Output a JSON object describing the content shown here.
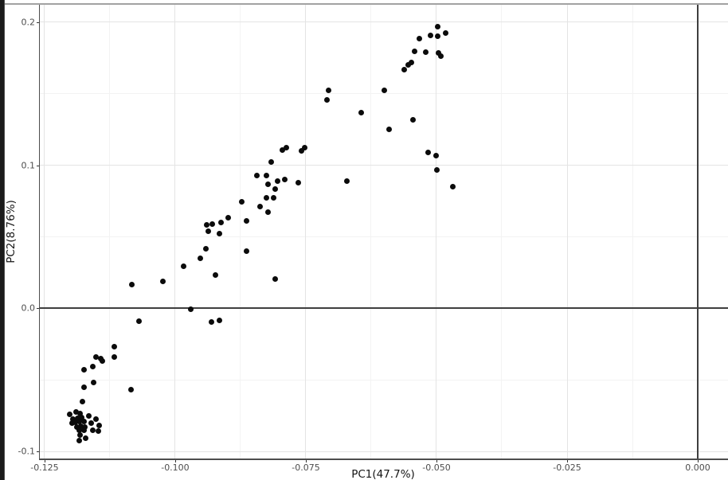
{
  "window": {
    "left_strip_color": "#1b1b1b",
    "top_divider_color": "#a2a2a2"
  },
  "chart_data": {
    "type": "scatter",
    "title": "",
    "xlabel": "PC1(47.7%)",
    "ylabel": "PC2(8.76%)",
    "legend": "none",
    "grid": "major+minor",
    "point_color": "#0b0b0b",
    "reference_line_color": "#3f3f3f",
    "xlim": [
      -0.12606,
      0.00579
    ],
    "ylim": [
      -0.10556,
      0.21222
    ],
    "x_ticks": {
      "values": [
        -0.125,
        -0.1,
        -0.075,
        -0.05,
        -0.025,
        0
      ],
      "labels": [
        "-0.125",
        "-0.100",
        "-0.075",
        "-0.050",
        "-0.025",
        "0.000"
      ]
    },
    "y_ticks": {
      "values": [
        -0.1,
        0,
        0.1,
        0.2
      ],
      "labels": [
        "-0.1",
        "0.0",
        "0.1",
        "0.2"
      ]
    },
    "x_minor_ticks": [
      -0.1125,
      -0.0875,
      -0.0625,
      -0.0375,
      -0.0125
    ],
    "y_minor_ticks": [
      -0.05,
      0.05,
      0.15
    ],
    "reference_lines": {
      "hline_y": 0,
      "vline_x": 0
    },
    "points": [
      [
        -0.0497,
        0.1968
      ],
      [
        -0.0532,
        0.1885
      ],
      [
        -0.0512,
        0.1909
      ],
      [
        -0.0498,
        0.19
      ],
      [
        -0.0483,
        0.1924
      ],
      [
        -0.0542,
        0.1794
      ],
      [
        -0.052,
        0.1793
      ],
      [
        -0.0496,
        0.1783
      ],
      [
        -0.0491,
        0.1765
      ],
      [
        -0.0554,
        0.17
      ],
      [
        -0.0548,
        0.1717
      ],
      [
        -0.0562,
        0.1668
      ],
      [
        -0.0706,
        0.1524
      ],
      [
        -0.0709,
        0.1456
      ],
      [
        -0.06,
        0.1524
      ],
      [
        -0.0644,
        0.1367
      ],
      [
        -0.0545,
        0.1317
      ],
      [
        -0.059,
        0.1254
      ],
      [
        -0.0516,
        0.1089
      ],
      [
        -0.0501,
        0.1067
      ],
      [
        -0.0499,
        0.0965
      ],
      [
        -0.0468,
        0.085
      ],
      [
        -0.0795,
        0.1104
      ],
      [
        -0.0788,
        0.1126
      ],
      [
        -0.0759,
        0.11
      ],
      [
        -0.0752,
        0.1126
      ],
      [
        -0.0817,
        0.1024
      ],
      [
        -0.0843,
        0.0928
      ],
      [
        -0.0825,
        0.0928
      ],
      [
        -0.0804,
        0.0891
      ],
      [
        -0.0791,
        0.09
      ],
      [
        -0.0765,
        0.0876
      ],
      [
        -0.0672,
        0.0891
      ],
      [
        -0.0822,
        0.0867
      ],
      [
        -0.0808,
        0.0832
      ],
      [
        -0.0825,
        0.0771
      ],
      [
        -0.0811,
        0.0774
      ],
      [
        -0.0872,
        0.0746
      ],
      [
        -0.0837,
        0.0711
      ],
      [
        -0.0823,
        0.0672
      ],
      [
        -0.0899,
        0.0635
      ],
      [
        -0.0913,
        0.0602
      ],
      [
        -0.0929,
        0.0589
      ],
      [
        -0.094,
        0.0585
      ],
      [
        -0.0937,
        0.0539
      ],
      [
        -0.0915,
        0.0521
      ],
      [
        -0.0864,
        0.0613
      ],
      [
        -0.0864,
        0.0402
      ],
      [
        -0.0942,
        0.0417
      ],
      [
        -0.0952,
        0.035
      ],
      [
        -0.0984,
        0.0293
      ],
      [
        -0.0923,
        0.0233
      ],
      [
        -0.0809,
        0.0206
      ],
      [
        -0.1083,
        0.0168
      ],
      [
        -0.1024,
        0.0191
      ],
      [
        -0.097,
        -0.0004
      ],
      [
        -0.0931,
        -0.0096
      ],
      [
        -0.0916,
        -0.0087
      ],
      [
        -0.107,
        -0.0091
      ],
      [
        -0.1116,
        -0.0267
      ],
      [
        -0.1116,
        -0.0339
      ],
      [
        -0.1151,
        -0.0339
      ],
      [
        -0.1143,
        -0.0354
      ],
      [
        -0.114,
        -0.0368
      ],
      [
        -0.1174,
        -0.0428
      ],
      [
        -0.1158,
        -0.0409
      ],
      [
        -0.1156,
        -0.0517
      ],
      [
        -0.1174,
        -0.055
      ],
      [
        -0.1084,
        -0.057
      ],
      [
        -0.1178,
        -0.0654
      ],
      [
        -0.1202,
        -0.0743
      ],
      [
        -0.1189,
        -0.0724
      ],
      [
        -0.1182,
        -0.0733
      ],
      [
        -0.1165,
        -0.0754
      ],
      [
        -0.1196,
        -0.0772
      ],
      [
        -0.1187,
        -0.0767
      ],
      [
        -0.1179,
        -0.0761
      ],
      [
        -0.1152,
        -0.0776
      ],
      [
        -0.1198,
        -0.0804
      ],
      [
        -0.1191,
        -0.0798
      ],
      [
        -0.1183,
        -0.0794
      ],
      [
        -0.1175,
        -0.0791
      ],
      [
        -0.116,
        -0.0804
      ],
      [
        -0.1145,
        -0.0817
      ],
      [
        -0.1188,
        -0.0828
      ],
      [
        -0.118,
        -0.0822
      ],
      [
        -0.1173,
        -0.0828
      ],
      [
        -0.1184,
        -0.0854
      ],
      [
        -0.1175,
        -0.085
      ],
      [
        -0.1158,
        -0.0854
      ],
      [
        -0.1147,
        -0.0859
      ],
      [
        -0.1182,
        -0.0887
      ],
      [
        -0.1172,
        -0.0909
      ],
      [
        -0.1183,
        -0.0924
      ]
    ]
  }
}
